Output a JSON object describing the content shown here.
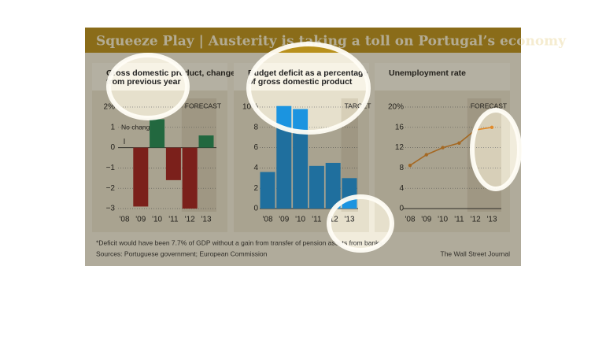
{
  "title": "Squeeze Play | Austerity is taking a toll on Portugal’s economy",
  "footnote": "*Deficit would have been 7.7% of GDP without a gain from transfer of pension assets from banks",
  "source": "Sources: Portuguese government; European Commission",
  "credit": "The Wall Street Journal",
  "chart_data": [
    {
      "type": "bar",
      "title": "Gross domestic product, change from previous year",
      "categories": [
        "'08",
        "'09",
        "'10",
        "'11",
        "'12",
        "'13"
      ],
      "values": [
        0,
        -2.9,
        1.4,
        -1.6,
        -3.0,
        0.6
      ],
      "colors": [
        "#1f8a55",
        "#a31f1f",
        "#1f8a55",
        "#a31f1f",
        "#a31f1f",
        "#1f8a55"
      ],
      "ylim": [
        -3,
        2
      ],
      "yticks": [
        {
          "value": -3,
          "label": "−3"
        },
        {
          "value": -2,
          "label": "−2"
        },
        {
          "value": -1,
          "label": "−1"
        },
        0,
        1,
        {
          "value": 2,
          "label": "2%"
        }
      ],
      "grid": true,
      "annotation": "No change",
      "band_label": "FORECAST",
      "band_start": 4
    },
    {
      "type": "bar",
      "title": "Budget deficit as a percentage of gross domestic product",
      "categories": [
        "'08",
        "'09",
        "'10",
        "'11",
        "'12",
        "'13"
      ],
      "values": [
        3.6,
        10.1,
        9.8,
        4.2,
        4.5,
        3.0
      ],
      "color": "#1b94e0",
      "ylim": [
        0,
        10
      ],
      "yticks": [
        0,
        2,
        4,
        6,
        8,
        {
          "value": 10,
          "label": "10%"
        }
      ],
      "grid": true,
      "band_label": "TARGET",
      "band_start": 5
    },
    {
      "type": "line",
      "title": "Unemployment rate",
      "categories": [
        "'08",
        "'09",
        "'10",
        "'11",
        "'12",
        "'13"
      ],
      "values": [
        8.5,
        10.6,
        12.0,
        12.9,
        15.5,
        16.0
      ],
      "color": "#e08a2a",
      "ylim": [
        0,
        20
      ],
      "yticks": [
        0,
        4,
        8,
        12,
        16,
        {
          "value": 20,
          "label": "20%"
        }
      ],
      "grid": true,
      "band_label": "FORECAST",
      "band_start": 4
    }
  ]
}
